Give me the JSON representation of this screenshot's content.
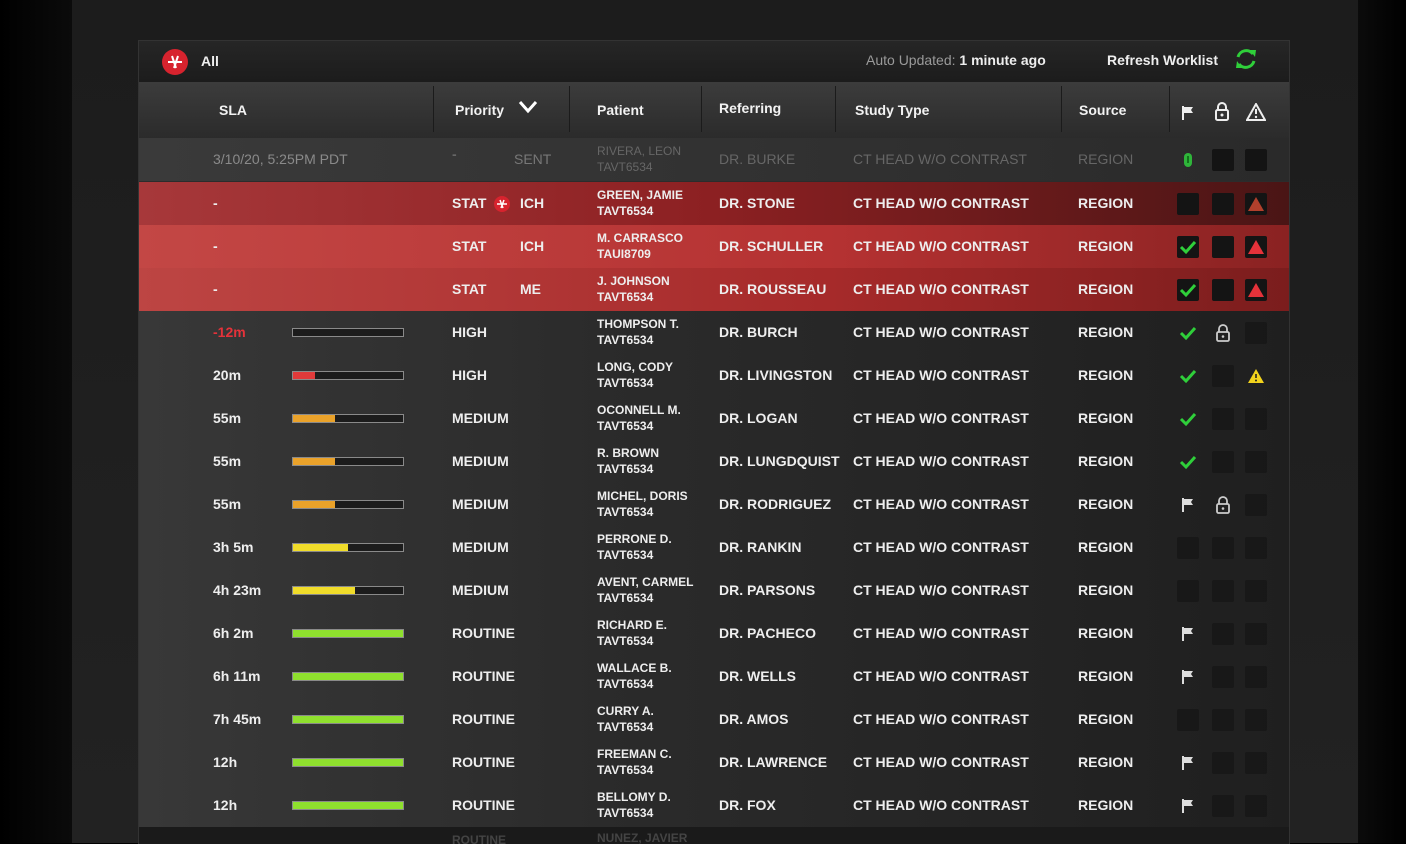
{
  "topbar": {
    "filter_label": "All",
    "auto_updated_label": "Auto Updated:",
    "auto_updated_value": "1 minute ago",
    "refresh_label": "Refresh Worklist"
  },
  "columns": {
    "sla": "SLA",
    "priority": "Priority",
    "patient": "Patient",
    "referring": "Referring",
    "study_type": "Study Type",
    "source": "Source"
  },
  "rows": [
    {
      "sla": "3/10/20, 5:25PM PDT",
      "priority": "-",
      "sub": "SENT",
      "patient_name": "RIVERA, LEON",
      "patient_id": "TAVT6534",
      "referring": "DR. BURKE",
      "study": "CT HEAD W/O CONTRAST",
      "source": "REGION"
    },
    {
      "sla": "-",
      "priority": "STAT",
      "sub": "ICH",
      "patient_name": "GREEN, JAMIE",
      "patient_id": "TAVT6534",
      "referring": "DR. STONE",
      "study": "CT HEAD W/O CONTRAST",
      "source": "REGION"
    },
    {
      "sla": "-",
      "priority": "STAT",
      "sub": "ICH",
      "patient_name": "M. CARRASCO",
      "patient_id": "TAUI8709",
      "referring": "DR. SCHULLER",
      "study": "CT HEAD W/O CONTRAST",
      "source": "REGION"
    },
    {
      "sla": "-",
      "priority": "STAT",
      "sub": "ME",
      "patient_name": "J. JOHNSON",
      "patient_id": "TAVT6534",
      "referring": "DR. ROUSSEAU",
      "study": "CT HEAD W/O CONTRAST",
      "source": "REGION"
    },
    {
      "sla": "-12m",
      "progress": 0.0,
      "bar_color": "#555",
      "priority": "HIGH",
      "patient_name": "THOMPSON T.",
      "patient_id": "TAVT6534",
      "referring": "DR. BURCH",
      "study": "CT HEAD W/O CONTRAST",
      "source": "REGION"
    },
    {
      "sla": "20m",
      "progress": 0.2,
      "bar_color": "#e03a3a",
      "priority": "HIGH",
      "patient_name": "LONG, CODY",
      "patient_id": "TAVT6534",
      "referring": "DR. LIVINGSTON",
      "study": "CT HEAD W/O CONTRAST",
      "source": "REGION"
    },
    {
      "sla": "55m",
      "progress": 0.38,
      "bar_color": "#eaa22a",
      "priority": "MEDIUM",
      "patient_name": "OCONNELL M.",
      "patient_id": "TAVT6534",
      "referring": "DR. LOGAN",
      "study": "CT HEAD W/O CONTRAST",
      "source": "REGION"
    },
    {
      "sla": "55m",
      "progress": 0.38,
      "bar_color": "#eaa22a",
      "priority": "MEDIUM",
      "patient_name": "R. BROWN",
      "patient_id": "TAVT6534",
      "referring": "DR. LUNGDQUIST",
      "study": "CT HEAD W/O CONTRAST",
      "source": "REGION"
    },
    {
      "sla": "55m",
      "progress": 0.38,
      "bar_color": "#eaa22a",
      "priority": "MEDIUM",
      "patient_name": "MICHEL, DORIS",
      "patient_id": "TAVT6534",
      "referring": "DR. RODRIGUEZ",
      "study": "CT HEAD W/O CONTRAST",
      "source": "REGION"
    },
    {
      "sla": "3h 5m",
      "progress": 0.5,
      "bar_color": "#f0dc2a",
      "priority": "MEDIUM",
      "patient_name": "PERRONE D.",
      "patient_id": "TAVT6534",
      "referring": "DR. RANKIN",
      "study": "CT HEAD W/O CONTRAST",
      "source": "REGION"
    },
    {
      "sla": "4h 23m",
      "progress": 0.56,
      "bar_color": "#f0dc2a",
      "priority": "MEDIUM",
      "patient_name": "AVENT, CARMEL",
      "patient_id": "TAVT6534",
      "referring": "DR. PARSONS",
      "study": "CT HEAD W/O CONTRAST",
      "source": "REGION"
    },
    {
      "sla": "6h 2m",
      "progress": 1.0,
      "bar_color": "#8fe02e",
      "priority": "ROUTINE",
      "patient_name": "RICHARD E.",
      "patient_id": "TAVT6534",
      "referring": "DR. PACHECO",
      "study": "CT HEAD W/O CONTRAST",
      "source": "REGION"
    },
    {
      "sla": "6h 11m",
      "progress": 1.0,
      "bar_color": "#8fe02e",
      "priority": "ROUTINE",
      "patient_name": "WALLACE B.",
      "patient_id": "TAVT6534",
      "referring": "DR. WELLS",
      "study": "CT HEAD W/O CONTRAST",
      "source": "REGION"
    },
    {
      "sla": "7h 45m",
      "progress": 1.0,
      "bar_color": "#8fe02e",
      "priority": "ROUTINE",
      "patient_name": "CURRY A.",
      "patient_id": "TAVT6534",
      "referring": "DR. AMOS",
      "study": "CT HEAD W/O CONTRAST",
      "source": "REGION"
    },
    {
      "sla": "12h",
      "progress": 1.0,
      "bar_color": "#8fe02e",
      "priority": "ROUTINE",
      "patient_name": "FREEMAN C.",
      "patient_id": "TAVT6534",
      "referring": "DR. LAWRENCE",
      "study": "CT HEAD W/O CONTRAST",
      "source": "REGION"
    },
    {
      "sla": "12h",
      "progress": 1.0,
      "bar_color": "#8fe02e",
      "priority": "ROUTINE",
      "patient_name": "BELLOMY D.",
      "patient_id": "TAVT6534",
      "referring": "DR. FOX",
      "study": "CT HEAD W/O CONTRAST",
      "source": "REGION"
    }
  ],
  "partial_row": {
    "priority": "ROUTINE",
    "patient_name": "NUNEZ, JAVIER"
  },
  "colors": {
    "brand_red": "#d7232e",
    "check_green": "#2fcf3a",
    "warning_yellow": "#f2d31c",
    "overdue_red": "#e5323a"
  }
}
